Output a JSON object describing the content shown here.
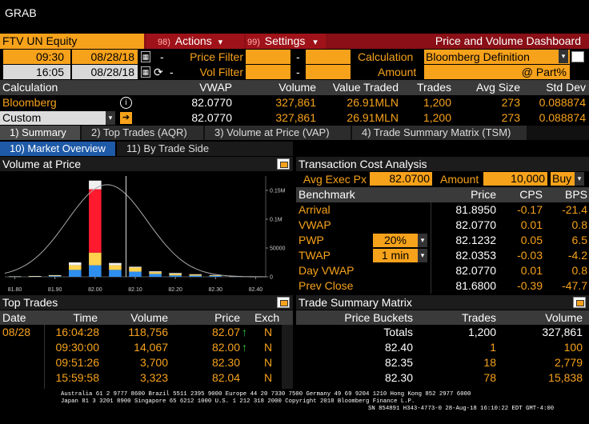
{
  "app": {
    "title": "GRAB"
  },
  "toolbar": {
    "ticker": "FTV UN Equity",
    "actions_num": "98)",
    "actions_label": "Actions",
    "settings_num": "99)",
    "settings_label": "Settings",
    "dashboard_title": "Price and Volume Dashboard"
  },
  "filters": {
    "start_time": "09:30",
    "start_date": "08/28/18",
    "end_time": "16:05",
    "end_date": "08/28/18",
    "dash": "-",
    "price_filter_label": "Price Filter",
    "vol_filter_label": "Vol Filter",
    "calculation_label": "Calculation",
    "calculation_value": "Bloomberg Definition",
    "amount_label": "Amount",
    "part_label": "@ Part%"
  },
  "calc_table": {
    "headers": [
      "Calculation",
      "VWAP",
      "Volume",
      "Value Traded",
      "Trades",
      "Avg Size",
      "Std Dev"
    ],
    "rows": [
      {
        "name": "Bloomberg",
        "vwap": "82.0770",
        "volume": "327,861",
        "value": "26.91MLN",
        "trades": "1,200",
        "avg_size": "273",
        "std_dev": "0.088874"
      },
      {
        "name": "Custom",
        "vwap": "82.0770",
        "volume": "327,861",
        "value": "26.91MLN",
        "trades": "1,200",
        "avg_size": "273",
        "std_dev": "0.088874"
      }
    ]
  },
  "tabs": [
    {
      "label": "1) Summary"
    },
    {
      "label": "2) Top Trades (AQR)"
    },
    {
      "label": "3) Volume at Price (VAP)"
    },
    {
      "label": "4) Trade Summary Matrix (TSM)"
    }
  ],
  "subtabs": [
    {
      "label": "10) Market Overview"
    },
    {
      "label": "11) By Trade Side"
    }
  ],
  "vap_panel": {
    "title": "Volume at Price"
  },
  "chart_data": {
    "type": "bar",
    "title": "Volume at Price",
    "x": [
      81.8,
      81.85,
      81.9,
      81.95,
      82.0,
      82.05,
      82.1,
      82.15,
      82.2,
      82.25,
      82.3,
      82.35,
      82.4
    ],
    "x_tick_labels": [
      "81.80",
      "81.90",
      "82.00",
      "82.10",
      "82.20",
      "82.30",
      "82.40"
    ],
    "y_tick_labels": [
      "0",
      "50000",
      "0.1M",
      "0.15M"
    ],
    "ylim": [
      0,
      175000
    ],
    "series": [
      {
        "values": [
          300,
          600,
          1200,
          12000,
          20000,
          12000,
          9000,
          5000,
          2500,
          2000,
          1500,
          500,
          200
        ]
      },
      {
        "values": [
          200,
          300,
          800,
          8000,
          22000,
          8000,
          7000,
          3000,
          2500,
          2000,
          1000,
          500,
          100
        ]
      },
      {
        "values": [
          0,
          0,
          0,
          0,
          110000,
          0,
          0,
          0,
          0,
          0,
          0,
          0,
          0
        ]
      },
      {
        "values": [
          200,
          500,
          900,
          5000,
          15000,
          4000,
          1500,
          1500,
          1500,
          500,
          500,
          200,
          100
        ]
      }
    ],
    "colors": [
      "#2f8ff0",
      "#ffd24d",
      "#ff1a2e",
      "#f0f0f0"
    ],
    "grid": false
  },
  "tca": {
    "title": "Transaction Cost Analysis",
    "avg_exec_label": "Avg Exec Px",
    "avg_exec_value": "82.0700",
    "amount_label": "Amount",
    "amount_value": "10,000",
    "side": "Buy",
    "headers": [
      "Benchmark",
      "Price",
      "CPS",
      "BPS"
    ],
    "rows": [
      {
        "name": "Arrival",
        "param": "",
        "price": "81.8950",
        "cps": "-0.17",
        "bps": "-21.4"
      },
      {
        "name": "VWAP",
        "param": "",
        "price": "82.0770",
        "cps": "0.01",
        "bps": "0.8"
      },
      {
        "name": "PWP",
        "param": "20%",
        "price": "82.1232",
        "cps": "0.05",
        "bps": "6.5"
      },
      {
        "name": "TWAP",
        "param": "1 min",
        "price": "82.0353",
        "cps": "-0.03",
        "bps": "-4.2"
      },
      {
        "name": "Day VWAP",
        "param": "",
        "price": "82.0770",
        "cps": "0.01",
        "bps": "0.8"
      },
      {
        "name": "Prev Close",
        "param": "",
        "price": "81.6800",
        "cps": "-0.39",
        "bps": "-47.7"
      }
    ]
  },
  "top_trades": {
    "title": "Top Trades",
    "headers": [
      "Date",
      "Time",
      "Volume",
      "Price",
      "Exch"
    ],
    "rows": [
      {
        "date": "08/28",
        "time": "16:04:28",
        "volume": "118,756",
        "price": "82.07",
        "arrow": "↑",
        "exch": "N"
      },
      {
        "date": "",
        "time": "09:30:00",
        "volume": "14,067",
        "price": "82.00",
        "arrow": "↑",
        "exch": "N"
      },
      {
        "date": "",
        "time": "09:51:26",
        "volume": "3,700",
        "price": "82.30",
        "arrow": "",
        "exch": "N"
      },
      {
        "date": "",
        "time": "15:59:58",
        "volume": "3,323",
        "price": "82.04",
        "arrow": "",
        "exch": "N"
      }
    ]
  },
  "tsm": {
    "title": "Trade Summary Matrix",
    "headers": [
      "Price Buckets",
      "Trades",
      "Volume"
    ],
    "rows": [
      {
        "bucket": "Totals",
        "trades": "1,200",
        "volume": "327,861"
      },
      {
        "bucket": "82.40",
        "trades": "1",
        "volume": "100"
      },
      {
        "bucket": "82.35",
        "trades": "18",
        "volume": "2,779"
      },
      {
        "bucket": "82.30",
        "trades": "78",
        "volume": "15,838"
      }
    ]
  },
  "footer": {
    "line1": "Australia 61 2 9777 8600 Brazil 5511 2395 9000 Europe 44 20 7330 7500 Germany 49 69 9204 1210 Hong Kong 852 2977 6000",
    "line2": "Japan 81 3 3201 8900       Singapore 65 6212 1000      U.S. 1 212 318 2000         Copyright 2018 Bloomberg Finance L.P.",
    "line3": "SN 854891 H343-4773-0 28-Aug-18 16:10:22 EDT  GMT-4:00"
  }
}
